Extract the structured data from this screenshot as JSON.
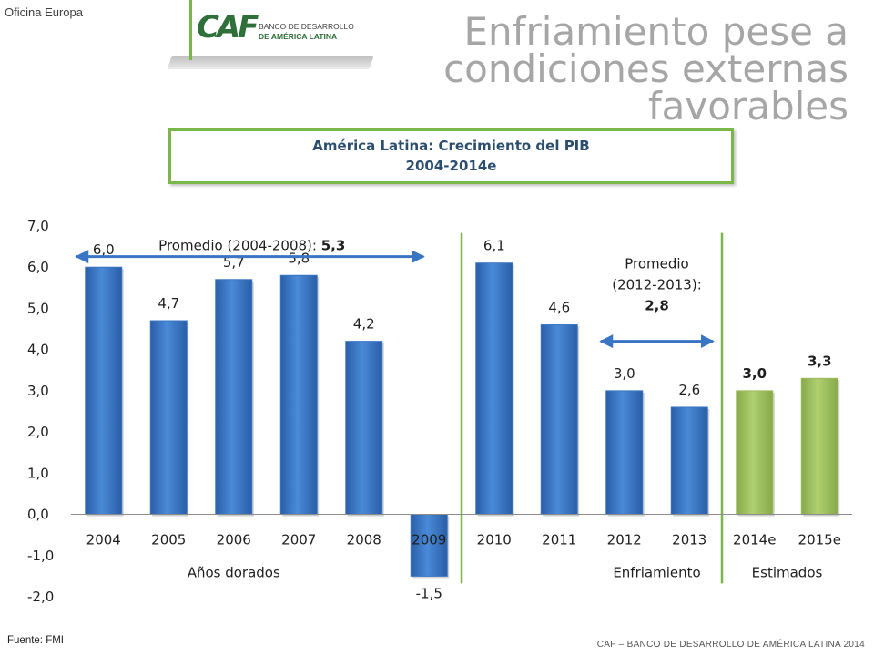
{
  "header": {
    "office": "Oficina Europa",
    "logo_mark": "CAF",
    "logo_line1": "BANCO DE DESARROLLO",
    "logo_line2": "DE AMÉRICA LATINA",
    "title_lines": [
      "Enfriamiento pese a",
      "condiciones externas",
      "favorables"
    ]
  },
  "chart_box": {
    "title": "América Latina: Crecimiento del PIB",
    "subtitle": "2004-2014e"
  },
  "chart_data": {
    "type": "bar",
    "categories": [
      "2004",
      "2005",
      "2006",
      "2007",
      "2008",
      "2009",
      "2010",
      "2011",
      "2012",
      "2013",
      "2014e",
      "2015e"
    ],
    "values": [
      6.0,
      4.7,
      5.7,
      5.8,
      4.2,
      -1.5,
      6.1,
      4.6,
      3.0,
      2.6,
      3.0,
      3.3
    ],
    "value_labels": [
      "6,0",
      "4,7",
      "5,7",
      "5,8",
      "4,2",
      "-1,5",
      "6,1",
      "4,6",
      "3,0",
      "2,6",
      "3,0",
      "3,3"
    ],
    "bold_labels": [
      false,
      false,
      false,
      false,
      false,
      false,
      false,
      false,
      false,
      false,
      true,
      true
    ],
    "bar_colors": [
      "#3a75c4",
      "#3a75c4",
      "#3a75c4",
      "#3a75c4",
      "#3a75c4",
      "#3a75c4",
      "#3a75c4",
      "#3a75c4",
      "#3a75c4",
      "#3a75c4",
      "#9bbb59",
      "#9bbb59"
    ],
    "ylim": [
      -2.0,
      7.0
    ],
    "yticks": [
      7.0,
      6.0,
      5.0,
      4.0,
      3.0,
      2.0,
      1.0,
      0.0,
      -1.0,
      -2.0
    ],
    "ytick_labels": [
      "7,0",
      "6,0",
      "5,0",
      "4,0",
      "3,0",
      "2,0",
      "1,0",
      "0,0",
      "-1,0",
      "-2,0"
    ],
    "grid": false,
    "groups": [
      {
        "label": "Años dorados",
        "from": 0,
        "to": 4
      },
      {
        "label": "Enfriamiento",
        "from": 8,
        "to": 9
      },
      {
        "label": "Estimados",
        "from": 10,
        "to": 11
      }
    ],
    "annotations": {
      "avg1_text": "Promedio (2004-2008): ",
      "avg1_value": "5,3",
      "avg2_line1": "Promedio",
      "avg2_line2": "(2012-2013):",
      "avg2_value": "2,8"
    }
  },
  "footer": {
    "source": "Fuente: FMI",
    "org": "CAF – BANCO DE DESARROLLO DE AMÉRICA LATINA 2014"
  }
}
